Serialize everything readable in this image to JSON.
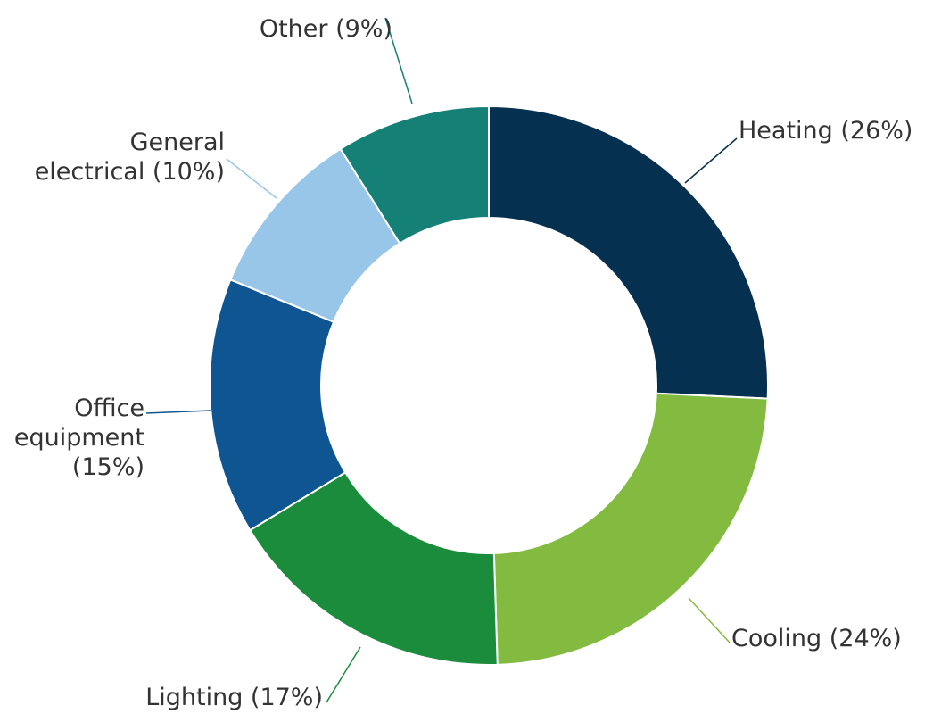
{
  "chart_data": {
    "type": "pie",
    "donut": true,
    "title": "",
    "slices": [
      {
        "name": "Heating",
        "value": 26,
        "color": "#06304f",
        "label": "Heating (26%)"
      },
      {
        "name": "Cooling",
        "value": 24,
        "color": "#82bb3f",
        "label": "Cooling (24%)"
      },
      {
        "name": "Lighting",
        "value": 17,
        "color": "#1a8c3b",
        "label": "Lighting (17%)"
      },
      {
        "name": "Office equipment",
        "value": 15,
        "color": "#0f5591",
        "label": "Office equipment (15%)"
      },
      {
        "name": "General electrical",
        "value": 10,
        "color": "#98c6e8",
        "label": "General electrical (10%)"
      },
      {
        "name": "Other",
        "value": 9,
        "color": "#148076",
        "label": "Other (9%)"
      }
    ],
    "legend": "none",
    "labels": "outside-with-leader-lines"
  }
}
